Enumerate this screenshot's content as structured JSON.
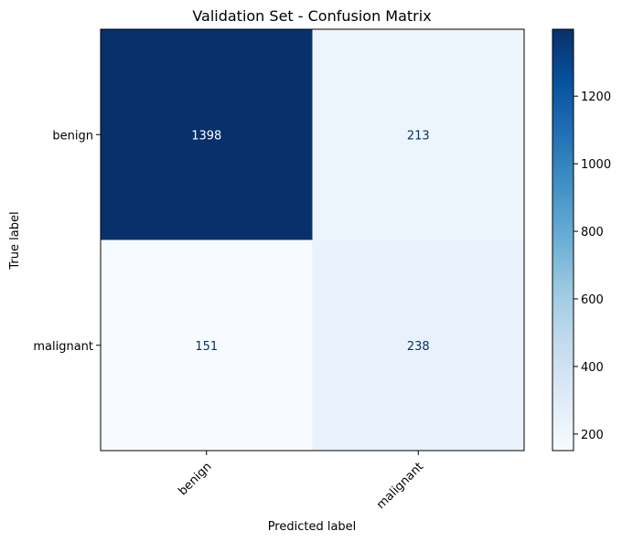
{
  "chart_data": {
    "type": "heatmap",
    "title": "Validation Set - Confusion Matrix",
    "xlabel": "Predicted label",
    "ylabel": "True label",
    "x_categories": [
      "benign",
      "malignant"
    ],
    "y_categories": [
      "benign",
      "malignant"
    ],
    "matrix": [
      [
        1398,
        213
      ],
      [
        151,
        238
      ]
    ],
    "colormap": "Blues",
    "color_range": [
      151,
      1398
    ],
    "colorbar_ticks": [
      200,
      400,
      600,
      800,
      1000,
      1200
    ],
    "colorbar_tick_labels": [
      "200",
      "400",
      "600",
      "800",
      "1000",
      "1200"
    ],
    "x_tick_rotation": 45,
    "grid": false
  }
}
